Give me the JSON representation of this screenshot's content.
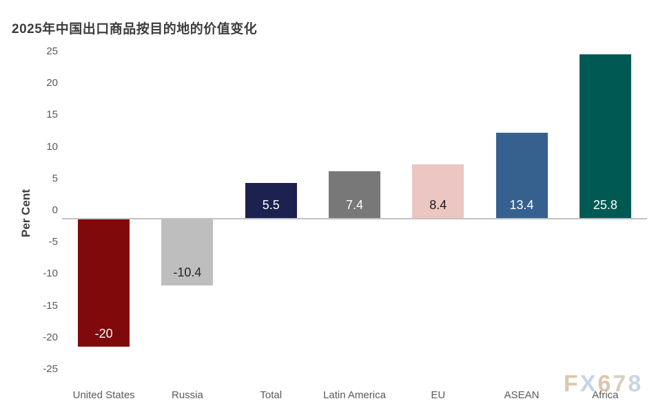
{
  "chart_data": {
    "type": "bar",
    "title": "2025年中国出口商品按目的地的价值变化",
    "ylabel": "Per Cent",
    "xlabel": "",
    "categories": [
      "United States",
      "Russia",
      "Total",
      "Latin America",
      "EU",
      "ASEAN",
      "Africa"
    ],
    "values": [
      -20,
      -10.4,
      5.5,
      7.4,
      8.4,
      13.4,
      25.8
    ],
    "value_labels": [
      "-20",
      "-10.4",
      "5.5",
      "7.4",
      "8.4",
      "13.4",
      "25.8"
    ],
    "bar_colors": [
      "#80090c",
      "#bebebe",
      "#1d2150",
      "#787878",
      "#ecc6c2",
      "#36618f",
      "#005a53"
    ],
    "value_label_colors": [
      "#ffffff",
      "#262626",
      "#ffffff",
      "#ffffff",
      "#1a1a1a",
      "#ffffff",
      "#ffffff"
    ],
    "ylim": [
      -25,
      25
    ],
    "yticks": [
      25,
      20,
      15,
      10,
      5,
      0,
      -5,
      -10,
      -15,
      -20,
      -25
    ],
    "grid": false,
    "legend": "none",
    "axis_line_color": "#c1c1c1",
    "tick_label_color": "#595959",
    "title_color": "#3d3d3d"
  },
  "watermark": {
    "text": "FX678",
    "letters": [
      {
        "char": "F",
        "color": "#ddc7af"
      },
      {
        "char": "X",
        "color": "#c3d6e6"
      },
      {
        "char": "6",
        "color": "#dcc5ab"
      },
      {
        "char": "7",
        "color": "#d6cfc1"
      },
      {
        "char": "8",
        "color": "#c7d6e3"
      }
    ]
  }
}
